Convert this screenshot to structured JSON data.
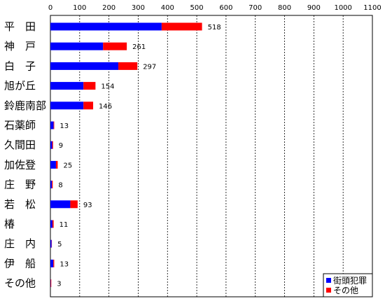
{
  "chart_data": {
    "type": "bar",
    "orientation": "horizontal",
    "stacked": true,
    "grid": true,
    "legend_position": "bottom-right",
    "xlim": [
      0,
      1100
    ],
    "x_ticks": [
      "0",
      "100",
      "200",
      "300",
      "400",
      "500",
      "600",
      "700",
      "800",
      "900",
      "1000",
      "1100"
    ],
    "categories": [
      "平　田",
      "神　戸",
      "白　子",
      "旭が丘",
      "鈴鹿南部",
      "石薬師",
      "久間田",
      "加佐登",
      "庄　野",
      "若　松",
      "椿",
      "庄　内",
      "伊　船",
      "その他"
    ],
    "totals": [
      "518",
      "261",
      "297",
      "154",
      "146",
      "13",
      "9",
      "25",
      "8",
      "93",
      "11",
      "5",
      "13",
      "3"
    ],
    "series": [
      {
        "name": "街頭犯罪",
        "color": "#0000ff",
        "values": [
          380,
          180,
          232,
          113,
          113,
          11,
          6,
          19,
          5,
          68,
          7,
          4,
          10,
          1
        ]
      },
      {
        "name": "その他",
        "color": "#ff0000",
        "values": [
          138,
          81,
          65,
          41,
          33,
          2,
          3,
          6,
          3,
          25,
          4,
          1,
          3,
          2
        ]
      }
    ]
  }
}
